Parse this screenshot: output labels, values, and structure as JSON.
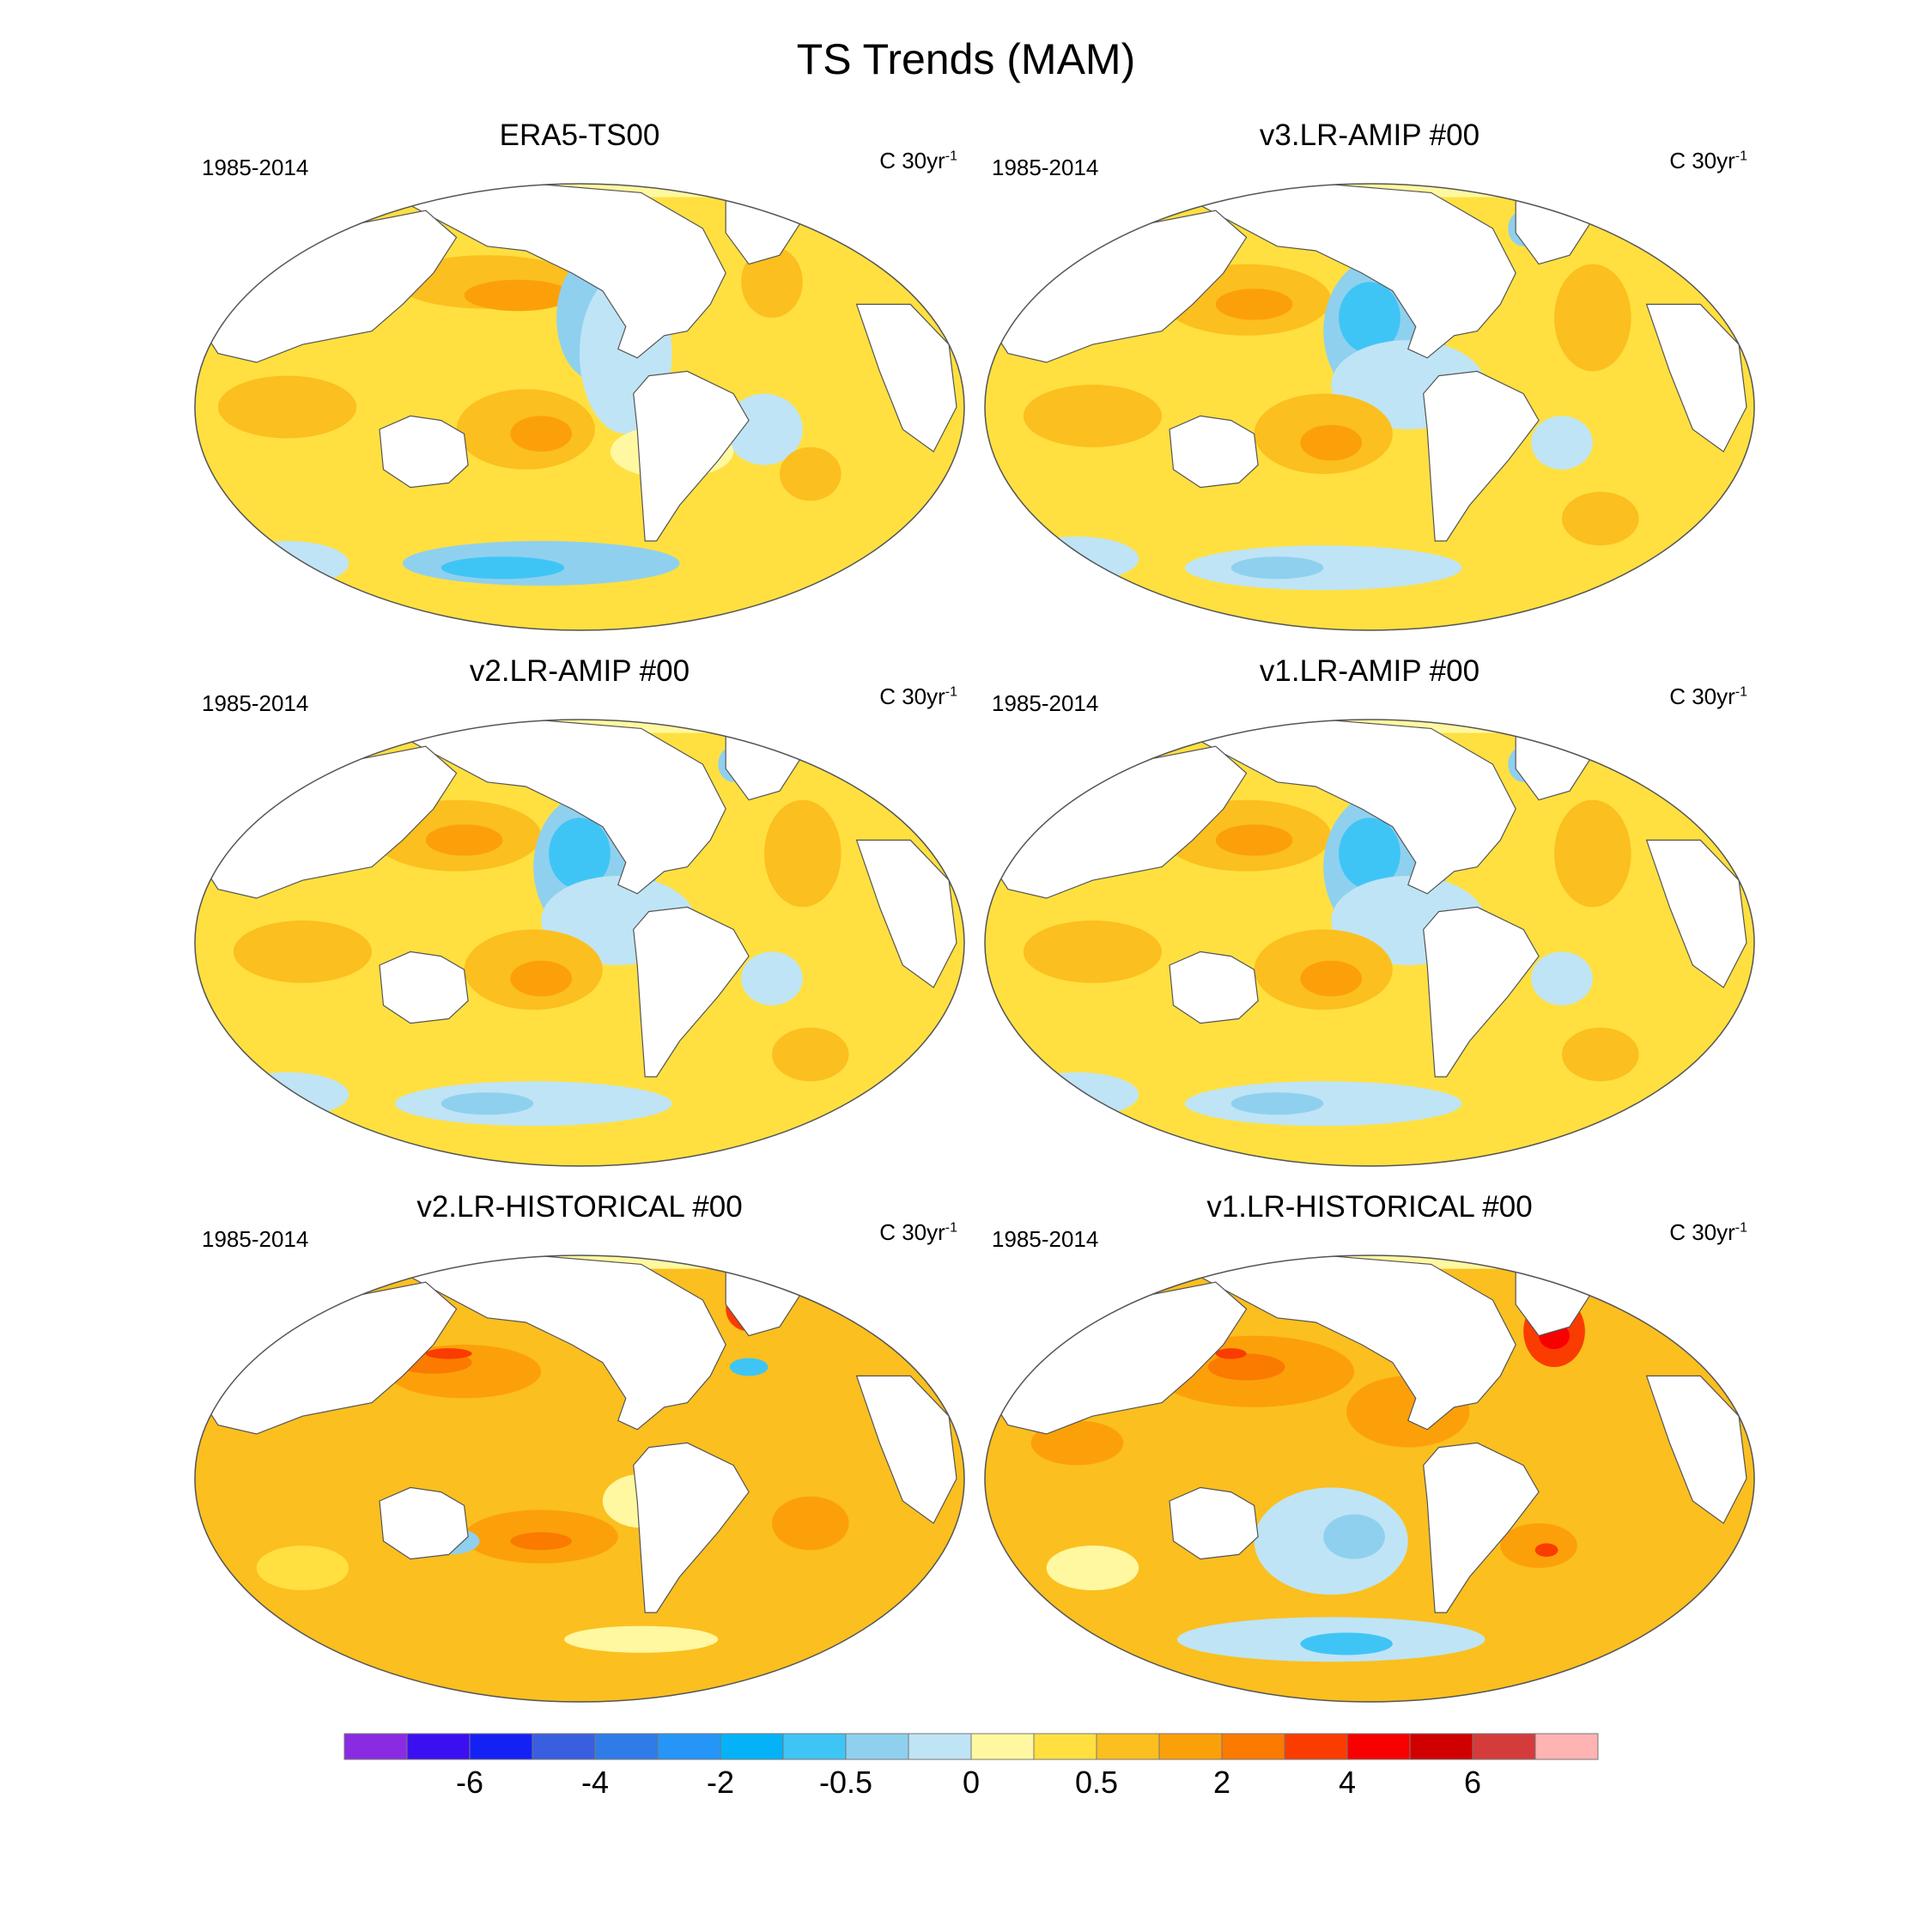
{
  "title": "TS Trends (MAM)",
  "panels": [
    {
      "title": "ERA5-TS00",
      "period": "1985-2014",
      "units": "C 30yr",
      "units_sup": "-1",
      "pattern": "obs"
    },
    {
      "title": "v3.LR-AMIP  #00",
      "period": "1985-2014",
      "units": "C 30yr",
      "units_sup": "-1",
      "pattern": "amip"
    },
    {
      "title": "v2.LR-AMIP  #00",
      "period": "1985-2014",
      "units": "C 30yr",
      "units_sup": "-1",
      "pattern": "amip"
    },
    {
      "title": "v1.LR-AMIP  #00",
      "period": "1985-2014",
      "units": "C 30yr",
      "units_sup": "-1",
      "pattern": "amip"
    },
    {
      "title": "v2.LR-HISTORICAL  #00",
      "period": "1985-2014",
      "units": "C 30yr",
      "units_sup": "-1",
      "pattern": "hist"
    },
    {
      "title": "v1.LR-HISTORICAL  #00",
      "period": "1985-2014",
      "units": "C 30yr",
      "units_sup": "-1",
      "pattern": "hist2"
    }
  ],
  "colorbar": {
    "colors": [
      "#8a2be2",
      "#3b0ff0",
      "#1421f5",
      "#3a5ee0",
      "#2f7be8",
      "#2596f7",
      "#05b2f7",
      "#3fc5f5",
      "#8fd0ef",
      "#bfe4f5",
      "#fff8a0",
      "#ffe040",
      "#fbbf1f",
      "#fca00a",
      "#fb7a00",
      "#fa3c00",
      "#f90000",
      "#d10000",
      "#d43b3b",
      "#ffb3b3"
    ],
    "labels": [
      "-6",
      "-4",
      "-2",
      "-0.5",
      "0",
      "0.5",
      "2",
      "4",
      "6"
    ]
  }
}
